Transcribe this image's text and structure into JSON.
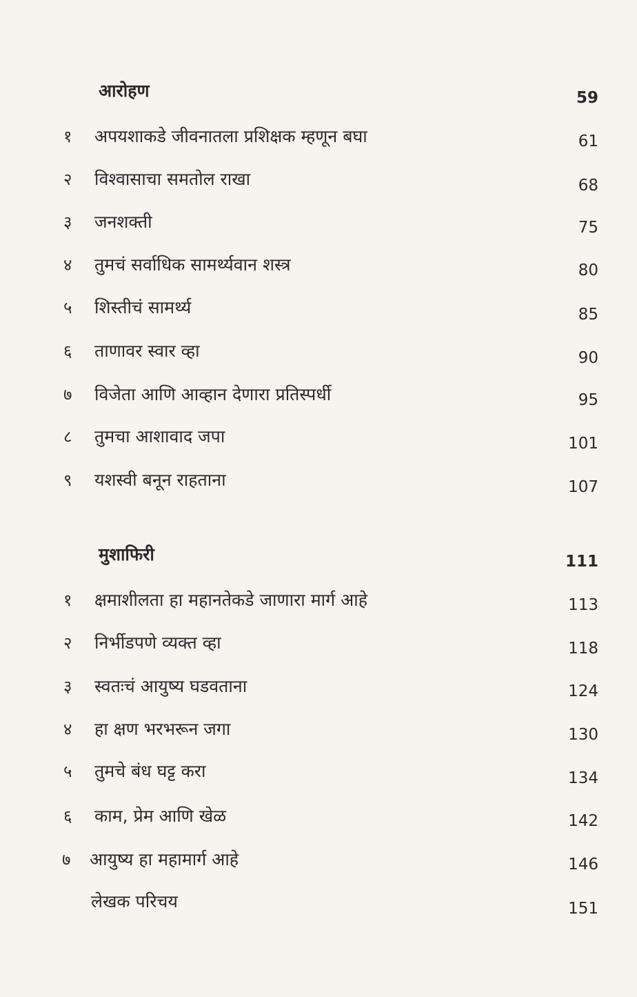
{
  "sections": [
    {
      "heading": "आरोहण",
      "page": "59",
      "items": [
        {
          "num": "१",
          "title": "अपयशाकडे जीवनातला प्रशिक्षक म्हणून बघा",
          "page": "61"
        },
        {
          "num": "२",
          "title": "विश्वासाचा समतोल राखा",
          "page": "68"
        },
        {
          "num": "३",
          "title": "जनशक्ती",
          "page": "75"
        },
        {
          "num": "४",
          "title": "तुमचं सर्वाधिक सामर्थ्यवान शस्त्र",
          "page": "80"
        },
        {
          "num": "५",
          "title": "शिस्तीचं सामर्थ्य",
          "page": "85"
        },
        {
          "num": "६",
          "title": "ताणावर स्वार व्हा",
          "page": "90"
        },
        {
          "num": "७",
          "title": "विजेता आणि आव्हान देणारा प्रतिस्पर्धी",
          "page": "95"
        },
        {
          "num": "८",
          "title": "तुमचा आशावाद जपा",
          "page": "101"
        },
        {
          "num": "९",
          "title": "यशस्वी बनून राहताना",
          "page": "107"
        }
      ]
    },
    {
      "heading": "मुशाफिरी",
      "page": "111",
      "items": [
        {
          "num": "१",
          "title": "क्षमाशीलता हा महानतेकडे जाणारा मार्ग आहे",
          "page": "113"
        },
        {
          "num": "२",
          "title": "निर्भीडपणे व्यक्त व्हा",
          "page": "118"
        },
        {
          "num": "३",
          "title": "स्वतःचं आयुष्य घडवताना",
          "page": "124"
        },
        {
          "num": "४",
          "title": "हा क्षण भरभरून जगा",
          "page": "130"
        },
        {
          "num": "५",
          "title": "तुमचे बंध घट्ट करा",
          "page": "134"
        },
        {
          "num": "६",
          "title": "काम, प्रेम आणि खेळ",
          "page": "142"
        },
        {
          "num": "७",
          "title": "आयुष्य हा महामार्ग आहे",
          "page": "146"
        }
      ]
    }
  ],
  "author_intro": {
    "title": "लेखक परिचय",
    "page": "151"
  }
}
